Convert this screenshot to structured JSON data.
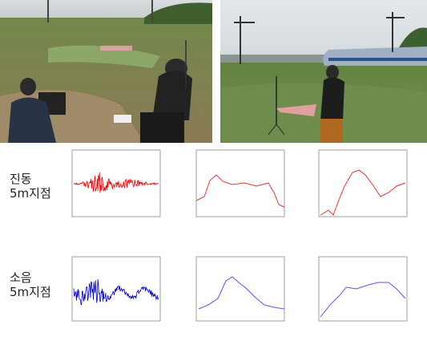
{
  "labels": [
    {
      "line1": "진동",
      "line2": "5m지점"
    },
    {
      "line1": "소음",
      "line2": "5m지점"
    }
  ]
}
